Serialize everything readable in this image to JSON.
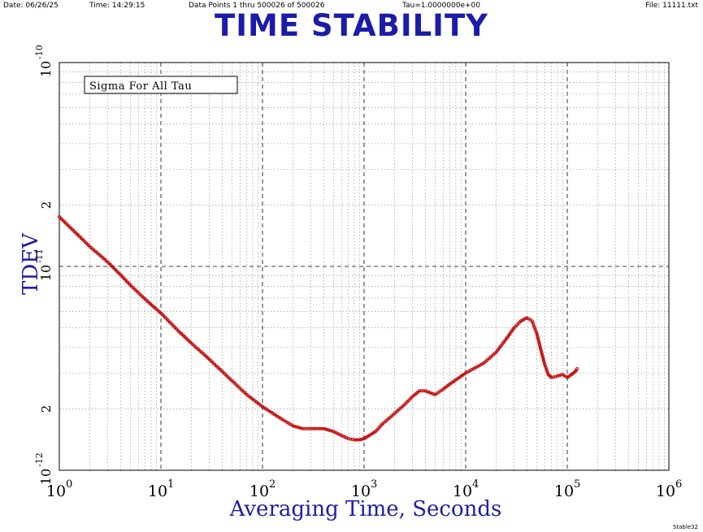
{
  "header": {
    "date": "Date: 06/26/25",
    "time": "Time: 14:29:15",
    "points": "Data Points 1 thru 500026 of 500026",
    "tau": "Tau=1.0000000e+00",
    "file": "File: 11111.txt"
  },
  "title": "TIME STABILITY",
  "footer": "Stable32",
  "chart_data": {
    "type": "scatter",
    "title": "TIME STABILITY",
    "xlabel": "Averaging Time, Seconds",
    "ylabel": "TDEV",
    "x_scale": "log",
    "y_scale": "log",
    "xlim": [
      1,
      1000000
    ],
    "ylim": [
      1e-12,
      1e-10
    ],
    "grid": true,
    "legend_box": "Sigma For All Tau",
    "x_ticks": [
      {
        "base": "10",
        "exp": "0"
      },
      {
        "base": "10",
        "exp": "1"
      },
      {
        "base": "10",
        "exp": "2"
      },
      {
        "base": "10",
        "exp": "3"
      },
      {
        "base": "10",
        "exp": "4"
      },
      {
        "base": "10",
        "exp": "5"
      },
      {
        "base": "10",
        "exp": "6"
      }
    ],
    "y_ticks": [
      {
        "base": "10",
        "exp": "-10",
        "value": 1e-10
      },
      {
        "base": "2",
        "exp": "",
        "value": 2e-11
      },
      {
        "base": "10",
        "exp": "-11",
        "value": 1e-11
      },
      {
        "base": "2",
        "exp": "",
        "value": 2e-12
      },
      {
        "base": "10",
        "exp": "-12",
        "value": 1e-12
      }
    ],
    "marker_color": "#c00000",
    "line_color": "#d02020",
    "series": [
      {
        "x": [
          1,
          2,
          3,
          4,
          5,
          7,
          10,
          15,
          20,
          30,
          50,
          70,
          100,
          150,
          200,
          250,
          300,
          400,
          500,
          600,
          700,
          800,
          900,
          1000,
          1300,
          1500,
          2000,
          2500,
          3000,
          3500,
          4000,
          5000,
          6000,
          7000,
          10000,
          15000,
          20000,
          25000,
          30000,
          35000,
          40000,
          45000,
          50000,
          55000,
          60000,
          65000,
          70000,
          80000,
          90000,
          100000,
          110000,
          120000,
          125000
        ],
        "y": [
          1.75e-11,
          1.25e-11,
          1.05e-11,
          9.1e-12,
          8.1e-12,
          6.9e-12,
          5.9e-12,
          4.8e-12,
          4.2e-12,
          3.5e-12,
          2.75e-12,
          2.35e-12,
          2.05e-12,
          1.8e-12,
          1.65e-12,
          1.6e-12,
          1.6e-12,
          1.6e-12,
          1.55e-12,
          1.48e-12,
          1.43e-12,
          1.41e-12,
          1.41e-12,
          1.43e-12,
          1.55e-12,
          1.68e-12,
          1.9e-12,
          2.1e-12,
          2.3e-12,
          2.45e-12,
          2.45e-12,
          2.35e-12,
          2.5e-12,
          2.65e-12,
          3e-12,
          3.35e-12,
          3.8e-12,
          4.4e-12,
          5e-12,
          5.4e-12,
          5.6e-12,
          5.4e-12,
          4.7e-12,
          3.9e-12,
          3.3e-12,
          2.95e-12,
          2.85e-12,
          2.9e-12,
          2.95e-12,
          2.85e-12,
          2.95e-12,
          3.05e-12,
          3.15e-12
        ]
      }
    ]
  }
}
